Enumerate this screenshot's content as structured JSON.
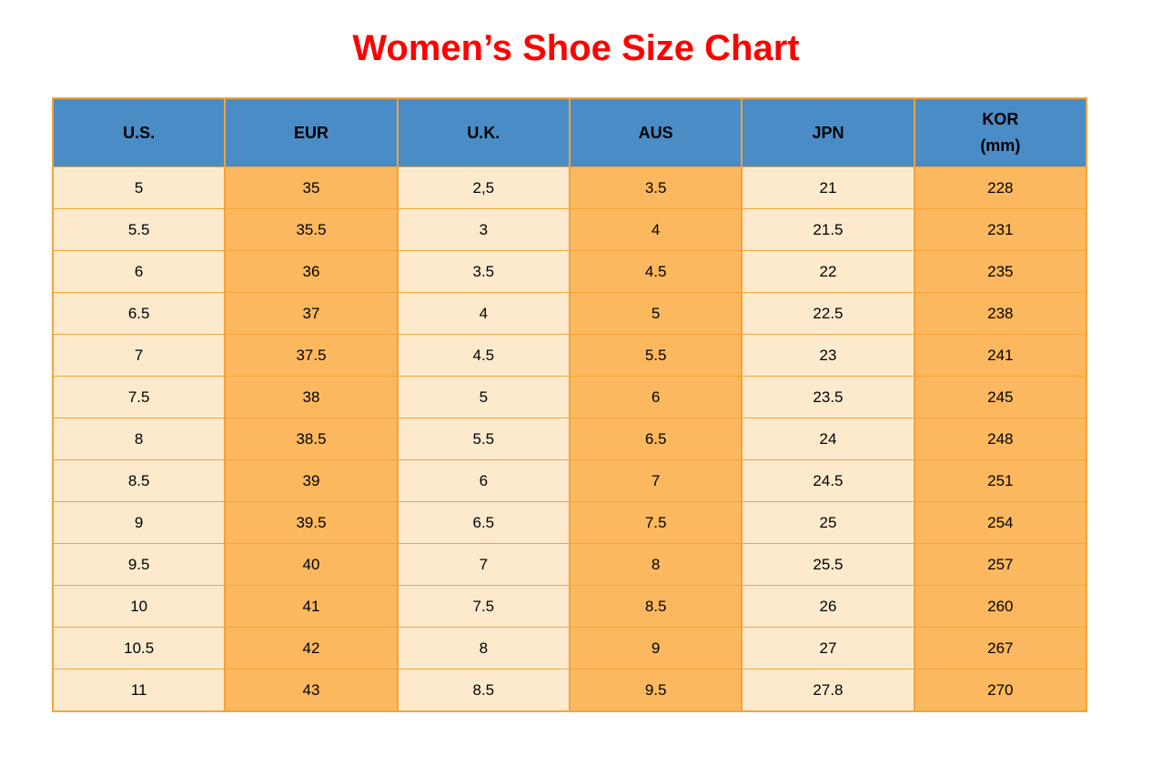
{
  "page": {
    "title": "Women’s Shoe Size Chart"
  },
  "colors": {
    "title_text": "#FF0000",
    "header_bg": "#4A8CC6",
    "cell_light": "#FDEACD",
    "cell_orange": "#FBB85E",
    "border": "#F2A43C",
    "cell_text": "#000000"
  },
  "chart_data": {
    "type": "table",
    "title": "Women’s Shoe Size Chart",
    "columns": [
      "U.S.",
      "EUR",
      "U.K.",
      "AUS",
      "JPN",
      "KOR (mm)"
    ],
    "header_labels": [
      "U.S.",
      "EUR",
      "U.K.",
      "AUS",
      "JPN",
      "KOR\n(mm)"
    ],
    "rows": [
      [
        "5",
        "35",
        "2,5",
        "3.5",
        "21",
        "228"
      ],
      [
        "5.5",
        "35.5",
        "3",
        "4",
        "21.5",
        "231"
      ],
      [
        "6",
        "36",
        "3.5",
        "4.5",
        "22",
        "235"
      ],
      [
        "6.5",
        "37",
        "4",
        "5",
        "22.5",
        "238"
      ],
      [
        "7",
        "37.5",
        "4.5",
        "5.5",
        "23",
        "241"
      ],
      [
        "7.5",
        "38",
        "5",
        "6",
        "23.5",
        "245"
      ],
      [
        "8",
        "38.5",
        "5.5",
        "6.5",
        "24",
        "248"
      ],
      [
        "8.5",
        "39",
        "6",
        "7",
        "24.5",
        "251"
      ],
      [
        "9",
        "39.5",
        "6.5",
        "7.5",
        "25",
        "254"
      ],
      [
        "9.5",
        "40",
        "7",
        "8",
        "25.5",
        "257"
      ],
      [
        "10",
        "41",
        "7.5",
        "8.5",
        "26",
        "260"
      ],
      [
        "10.5",
        "42",
        "8",
        "9",
        "27",
        "267"
      ],
      [
        "11",
        "43",
        "8.5",
        "9.5",
        "27.8",
        "270"
      ]
    ],
    "layout": {
      "column_pattern": [
        "light",
        "orange",
        "light",
        "orange",
        "light",
        "orange"
      ],
      "grid": "on"
    }
  }
}
